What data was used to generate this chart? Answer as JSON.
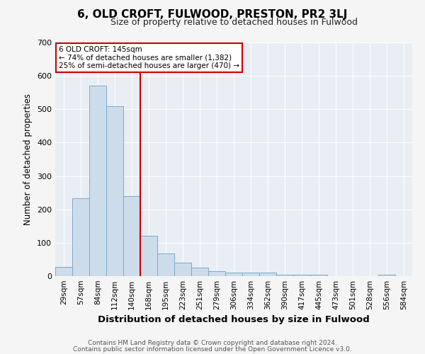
{
  "title": "6, OLD CROFT, FULWOOD, PRESTON, PR2 3LJ",
  "subtitle": "Size of property relative to detached houses in Fulwood",
  "xlabel": "Distribution of detached houses by size in Fulwood",
  "ylabel": "Number of detached properties",
  "bin_labels": [
    "29sqm",
    "57sqm",
    "84sqm",
    "112sqm",
    "140sqm",
    "168sqm",
    "195sqm",
    "223sqm",
    "251sqm",
    "279sqm",
    "306sqm",
    "334sqm",
    "362sqm",
    "390sqm",
    "417sqm",
    "445sqm",
    "473sqm",
    "501sqm",
    "528sqm",
    "556sqm",
    "584sqm"
  ],
  "bar_heights": [
    27,
    233,
    570,
    510,
    240,
    120,
    67,
    40,
    25,
    15,
    10,
    10,
    10,
    5,
    5,
    5,
    0,
    0,
    0,
    5,
    0
  ],
  "bar_color": "#cddceb",
  "bar_edgecolor": "#7aaac8",
  "red_line_x": 4.5,
  "annotation_text": "6 OLD CROFT: 145sqm\n← 74% of detached houses are smaller (1,382)\n25% of semi-detached houses are larger (470) →",
  "annotation_box_facecolor": "#ffffff",
  "annotation_box_edgecolor": "#cc0000",
  "red_line_color": "#cc0000",
  "ylim": [
    0,
    700
  ],
  "yticks": [
    0,
    100,
    200,
    300,
    400,
    500,
    600,
    700
  ],
  "footnote1": "Contains HM Land Registry data © Crown copyright and database right 2024.",
  "footnote2": "Contains public sector information licensed under the Open Government Licence v3.0.",
  "fig_facecolor": "#f5f5f5",
  "ax_facecolor": "#e8eef4",
  "grid_color": "#ffffff",
  "title_fontsize": 11,
  "subtitle_fontsize": 9,
  "xlabel_fontsize": 9.5,
  "ylabel_fontsize": 8.5,
  "tick_fontsize": 7.5,
  "annotation_fontsize": 7.5,
  "footnote_fontsize": 6.5
}
